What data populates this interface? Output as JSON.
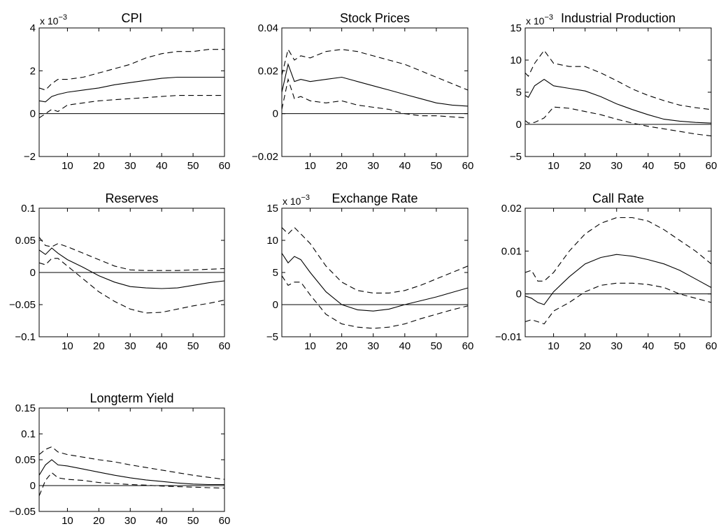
{
  "chart_data": [
    {
      "type": "line",
      "title": "CPI",
      "xlabel": "",
      "ylabel": "",
      "xlim": [
        1,
        60
      ],
      "ylim": [
        -2,
        4
      ],
      "x_ticks": [
        10,
        20,
        30,
        40,
        50,
        60
      ],
      "y_ticks": [
        -2,
        0,
        2,
        4
      ],
      "y_tick_labels": [
        "−2",
        "0",
        "2",
        "4"
      ],
      "exponent_label": "x 10",
      "exponent_power": "−3",
      "zero_line": true,
      "series": [
        {
          "style": "solid",
          "x": [
            1,
            3,
            5,
            7,
            10,
            15,
            20,
            25,
            30,
            35,
            40,
            45,
            50,
            55,
            60
          ],
          "y": [
            0.6,
            0.55,
            0.8,
            0.9,
            1.0,
            1.1,
            1.2,
            1.35,
            1.45,
            1.55,
            1.65,
            1.7,
            1.7,
            1.7,
            1.7
          ]
        },
        {
          "style": "dashed",
          "x": [
            1,
            3,
            5,
            7,
            10,
            15,
            20,
            25,
            30,
            35,
            40,
            45,
            50,
            55,
            60
          ],
          "y": [
            1.2,
            1.1,
            1.4,
            1.6,
            1.6,
            1.7,
            1.9,
            2.1,
            2.3,
            2.6,
            2.8,
            2.9,
            2.9,
            3.0,
            3.0
          ]
        },
        {
          "style": "dashed",
          "x": [
            1,
            3,
            5,
            7,
            10,
            15,
            20,
            25,
            30,
            35,
            40,
            45,
            50,
            55,
            60
          ],
          "y": [
            -0.2,
            0.0,
            0.2,
            0.1,
            0.4,
            0.5,
            0.6,
            0.65,
            0.7,
            0.75,
            0.8,
            0.85,
            0.85,
            0.85,
            0.85
          ]
        }
      ]
    },
    {
      "type": "line",
      "title": "Stock Prices",
      "xlabel": "",
      "ylabel": "",
      "xlim": [
        1,
        60
      ],
      "ylim": [
        -0.02,
        0.04
      ],
      "x_ticks": [
        10,
        20,
        30,
        40,
        50,
        60
      ],
      "y_ticks": [
        -0.02,
        0,
        0.02,
        0.04
      ],
      "y_tick_labels": [
        "−0.02",
        "0",
        "0.02",
        "0.04"
      ],
      "exponent_label": "",
      "exponent_power": "",
      "zero_line": true,
      "series": [
        {
          "style": "solid",
          "x": [
            1,
            3,
            5,
            7,
            10,
            15,
            20,
            25,
            30,
            35,
            40,
            45,
            50,
            55,
            60
          ],
          "y": [
            0.01,
            0.023,
            0.015,
            0.016,
            0.015,
            0.016,
            0.017,
            0.015,
            0.013,
            0.011,
            0.009,
            0.007,
            0.005,
            0.004,
            0.0035
          ]
        },
        {
          "style": "dashed",
          "x": [
            1,
            3,
            5,
            7,
            10,
            15,
            20,
            25,
            30,
            35,
            40,
            45,
            50,
            55,
            60
          ],
          "y": [
            0.018,
            0.03,
            0.025,
            0.027,
            0.026,
            0.029,
            0.03,
            0.029,
            0.027,
            0.025,
            0.023,
            0.02,
            0.017,
            0.014,
            0.011
          ]
        },
        {
          "style": "dashed",
          "x": [
            1,
            3,
            5,
            7,
            10,
            15,
            20,
            25,
            30,
            35,
            40,
            45,
            50,
            55,
            60
          ],
          "y": [
            0.002,
            0.016,
            0.007,
            0.008,
            0.006,
            0.005,
            0.006,
            0.004,
            0.003,
            0.002,
            0.0,
            -0.001,
            -0.001,
            -0.0015,
            -0.002
          ]
        }
      ]
    },
    {
      "type": "line",
      "title": "Industrial Production",
      "xlabel": "",
      "ylabel": "",
      "xlim": [
        1,
        60
      ],
      "ylim": [
        -5,
        15
      ],
      "x_ticks": [
        10,
        20,
        30,
        40,
        50,
        60
      ],
      "y_ticks": [
        -5,
        0,
        5,
        10,
        15
      ],
      "y_tick_labels": [
        "−5",
        "0",
        "5",
        "10",
        "15"
      ],
      "exponent_label": "x 10",
      "exponent_power": "−3",
      "zero_line": true,
      "series": [
        {
          "style": "solid",
          "x": [
            1,
            2,
            4,
            7,
            10,
            15,
            20,
            25,
            30,
            35,
            40,
            45,
            50,
            55,
            60
          ],
          "y": [
            4.5,
            4.2,
            6.0,
            7.0,
            6.0,
            5.6,
            5.2,
            4.3,
            3.2,
            2.3,
            1.5,
            0.8,
            0.5,
            0.3,
            0.2
          ]
        },
        {
          "style": "dashed",
          "x": [
            1,
            2,
            4,
            7,
            10,
            15,
            20,
            25,
            30,
            35,
            40,
            45,
            50,
            55,
            60
          ],
          "y": [
            8.0,
            7.5,
            9.5,
            11.5,
            9.5,
            9.0,
            9.0,
            8.0,
            6.8,
            5.5,
            4.5,
            3.7,
            3.0,
            2.6,
            2.3
          ]
        },
        {
          "style": "dashed",
          "x": [
            1,
            2,
            4,
            7,
            10,
            15,
            20,
            25,
            30,
            35,
            40,
            45,
            50,
            55,
            60
          ],
          "y": [
            0.6,
            0.2,
            0.3,
            1.0,
            2.7,
            2.5,
            2.0,
            1.5,
            0.8,
            0.2,
            -0.3,
            -0.7,
            -1.1,
            -1.5,
            -1.8
          ]
        }
      ]
    },
    {
      "type": "line",
      "title": "Reserves",
      "xlabel": "",
      "ylabel": "",
      "xlim": [
        1,
        60
      ],
      "ylim": [
        -0.1,
        0.1
      ],
      "x_ticks": [
        10,
        20,
        30,
        40,
        50,
        60
      ],
      "y_ticks": [
        -0.1,
        -0.05,
        0,
        0.05,
        0.1
      ],
      "y_tick_labels": [
        "−0.1",
        "−0.05",
        "0",
        "0.05",
        "0.1"
      ],
      "exponent_label": "",
      "exponent_power": "",
      "zero_line": true,
      "series": [
        {
          "style": "solid",
          "x": [
            1,
            3,
            5,
            7,
            10,
            15,
            20,
            25,
            30,
            35,
            40,
            45,
            50,
            55,
            60
          ],
          "y": [
            0.035,
            0.028,
            0.038,
            0.03,
            0.02,
            0.008,
            -0.005,
            -0.015,
            -0.022,
            -0.024,
            -0.025,
            -0.024,
            -0.02,
            -0.016,
            -0.013
          ]
        },
        {
          "style": "dashed",
          "x": [
            1,
            3,
            5,
            7,
            10,
            15,
            20,
            25,
            30,
            35,
            40,
            45,
            50,
            55,
            60
          ],
          "y": [
            0.055,
            0.042,
            0.04,
            0.045,
            0.04,
            0.03,
            0.02,
            0.01,
            0.004,
            0.003,
            0.003,
            0.003,
            0.004,
            0.005,
            0.006
          ]
        },
        {
          "style": "dashed",
          "x": [
            1,
            3,
            5,
            7,
            10,
            15,
            20,
            25,
            30,
            35,
            40,
            45,
            50,
            55,
            60
          ],
          "y": [
            0.015,
            0.012,
            0.022,
            0.022,
            0.01,
            -0.01,
            -0.03,
            -0.045,
            -0.057,
            -0.063,
            -0.062,
            -0.057,
            -0.052,
            -0.048,
            -0.043
          ]
        }
      ]
    },
    {
      "type": "line",
      "title": "Exchange Rate",
      "xlabel": "",
      "ylabel": "",
      "xlim": [
        1,
        60
      ],
      "ylim": [
        -5,
        15
      ],
      "x_ticks": [
        10,
        20,
        30,
        40,
        50,
        60
      ],
      "y_ticks": [
        -5,
        0,
        5,
        10,
        15
      ],
      "y_tick_labels": [
        "−5",
        "0",
        "5",
        "10",
        "15"
      ],
      "exponent_label": "x 10",
      "exponent_power": "−3",
      "zero_line": true,
      "series": [
        {
          "style": "solid",
          "x": [
            1,
            3,
            5,
            7,
            10,
            15,
            20,
            25,
            30,
            35,
            40,
            45,
            50,
            55,
            60
          ],
          "y": [
            8.0,
            6.5,
            7.5,
            7.0,
            5.0,
            2.0,
            0.0,
            -0.8,
            -1.0,
            -0.7,
            0.0,
            0.6,
            1.2,
            1.9,
            2.6
          ]
        },
        {
          "style": "dashed",
          "x": [
            1,
            3,
            5,
            7,
            10,
            15,
            20,
            25,
            30,
            35,
            40,
            45,
            50,
            55,
            60
          ],
          "y": [
            12.0,
            11.0,
            12.0,
            11.0,
            9.5,
            6.0,
            3.5,
            2.2,
            1.8,
            1.8,
            2.2,
            3.0,
            4.0,
            5.0,
            6.0
          ]
        },
        {
          "style": "dashed",
          "x": [
            1,
            3,
            5,
            7,
            10,
            15,
            20,
            25,
            30,
            35,
            40,
            45,
            50,
            55,
            60
          ],
          "y": [
            4.5,
            3.0,
            3.5,
            3.5,
            1.5,
            -1.5,
            -3.0,
            -3.5,
            -3.7,
            -3.5,
            -3.0,
            -2.2,
            -1.5,
            -0.8,
            -0.2
          ]
        }
      ]
    },
    {
      "type": "line",
      "title": "Call Rate",
      "xlabel": "",
      "ylabel": "",
      "xlim": [
        1,
        60
      ],
      "ylim": [
        -0.01,
        0.02
      ],
      "x_ticks": [
        10,
        20,
        30,
        40,
        50,
        60
      ],
      "y_ticks": [
        -0.01,
        0,
        0.01,
        0.02
      ],
      "y_tick_labels": [
        "−0.01",
        "0",
        "0.01",
        "0.02"
      ],
      "exponent_label": "",
      "exponent_power": "",
      "zero_line": true,
      "series": [
        {
          "style": "solid",
          "x": [
            1,
            3,
            5,
            7,
            10,
            15,
            20,
            25,
            30,
            35,
            40,
            45,
            50,
            55,
            60
          ],
          "y": [
            -0.0005,
            -0.001,
            -0.002,
            -0.0025,
            0.0005,
            0.004,
            0.007,
            0.0085,
            0.0092,
            0.0088,
            0.008,
            0.007,
            0.0055,
            0.0035,
            0.0015
          ]
        },
        {
          "style": "dashed",
          "x": [
            1,
            3,
            5,
            7,
            10,
            15,
            20,
            25,
            30,
            35,
            40,
            45,
            50,
            55,
            60
          ],
          "y": [
            0.005,
            0.0055,
            0.003,
            0.003,
            0.005,
            0.01,
            0.014,
            0.0165,
            0.0178,
            0.0178,
            0.017,
            0.015,
            0.0125,
            0.01,
            0.007
          ]
        },
        {
          "style": "dashed",
          "x": [
            1,
            3,
            5,
            7,
            10,
            15,
            20,
            25,
            30,
            35,
            40,
            45,
            50,
            55,
            60
          ],
          "y": [
            -0.0065,
            -0.006,
            -0.0065,
            -0.007,
            -0.004,
            -0.002,
            0.0005,
            0.002,
            0.0025,
            0.0025,
            0.0022,
            0.0015,
            0.0,
            -0.001,
            -0.002
          ]
        }
      ]
    },
    {
      "type": "line",
      "title": "Longterm Yield",
      "xlabel": "",
      "ylabel": "",
      "xlim": [
        1,
        60
      ],
      "ylim": [
        -0.05,
        0.15
      ],
      "x_ticks": [
        10,
        20,
        30,
        40,
        50,
        60
      ],
      "y_ticks": [
        -0.05,
        0,
        0.05,
        0.1,
        0.15
      ],
      "y_tick_labels": [
        "−0.05",
        "0",
        "0.05",
        "0.1",
        "0.15"
      ],
      "exponent_label": "",
      "exponent_power": "",
      "zero_line": true,
      "series": [
        {
          "style": "solid",
          "x": [
            1,
            3,
            5,
            7,
            10,
            15,
            20,
            25,
            30,
            35,
            40,
            45,
            50,
            55,
            60
          ],
          "y": [
            0.02,
            0.04,
            0.05,
            0.04,
            0.038,
            0.032,
            0.026,
            0.02,
            0.015,
            0.011,
            0.008,
            0.005,
            0.003,
            0.002,
            0.002
          ]
        },
        {
          "style": "dashed",
          "x": [
            1,
            3,
            5,
            7,
            10,
            15,
            20,
            25,
            30,
            35,
            40,
            45,
            50,
            55,
            60
          ],
          "y": [
            0.06,
            0.07,
            0.075,
            0.065,
            0.06,
            0.055,
            0.05,
            0.046,
            0.04,
            0.035,
            0.03,
            0.025,
            0.02,
            0.016,
            0.012
          ]
        },
        {
          "style": "dashed",
          "x": [
            1,
            3,
            5,
            7,
            10,
            15,
            20,
            25,
            30,
            35,
            40,
            45,
            50,
            55,
            60
          ],
          "y": [
            -0.02,
            0.01,
            0.025,
            0.015,
            0.012,
            0.01,
            0.006,
            0.004,
            0.002,
            0.001,
            -0.001,
            -0.002,
            -0.003,
            -0.004,
            -0.005
          ]
        }
      ]
    }
  ]
}
